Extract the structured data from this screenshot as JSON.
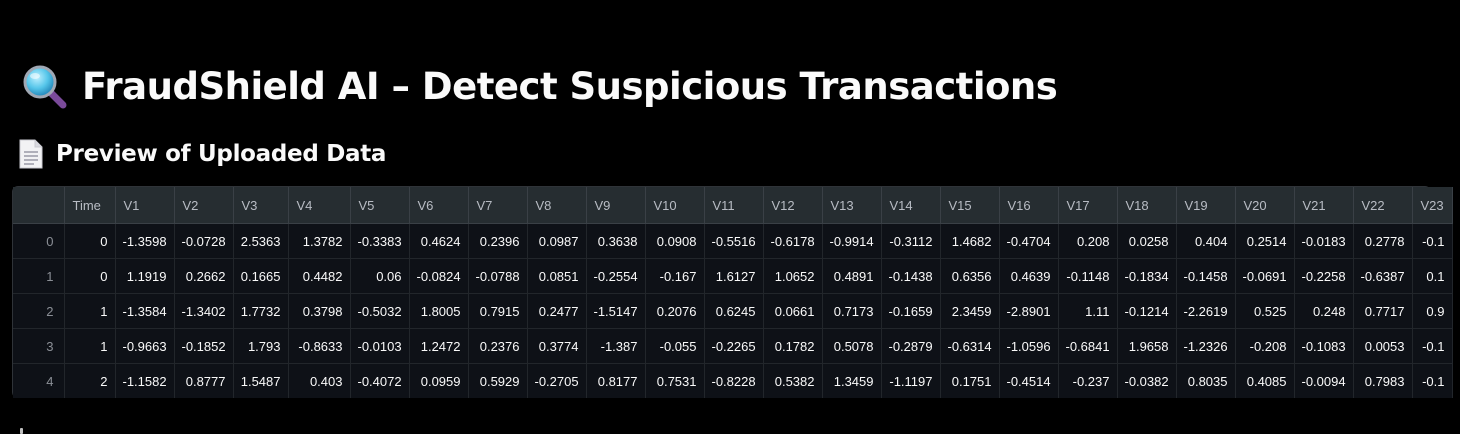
{
  "header": {
    "title": "FraudShield AI – Detect Suspicious Transactions",
    "title_icon": "magnifying-glass-icon"
  },
  "preview": {
    "subtitle": "Preview of Uploaded Data",
    "subtitle_icon": "document-icon"
  },
  "table": {
    "columns": [
      "",
      "Time",
      "V1",
      "V2",
      "V3",
      "V4",
      "V5",
      "V6",
      "V7",
      "V8",
      "V9",
      "V10",
      "V11",
      "V12",
      "V13",
      "V14",
      "V15",
      "V16",
      "V17",
      "V18",
      "V19",
      "V20",
      "V21",
      "V22",
      "V23"
    ],
    "rows": [
      [
        "0",
        "0",
        "-1.3598",
        "-0.0728",
        "2.5363",
        "1.3782",
        "-0.3383",
        "0.4624",
        "0.2396",
        "0.0987",
        "0.3638",
        "0.0908",
        "-0.5516",
        "-0.6178",
        "-0.9914",
        "-0.3112",
        "1.4682",
        "-0.4704",
        "0.208",
        "0.0258",
        "0.404",
        "0.2514",
        "-0.0183",
        "0.2778",
        "-0.1"
      ],
      [
        "1",
        "0",
        "1.1919",
        "0.2662",
        "0.1665",
        "0.4482",
        "0.06",
        "-0.0824",
        "-0.0788",
        "0.0851",
        "-0.2554",
        "-0.167",
        "1.6127",
        "1.0652",
        "0.4891",
        "-0.1438",
        "0.6356",
        "0.4639",
        "-0.1148",
        "-0.1834",
        "-0.1458",
        "-0.0691",
        "-0.2258",
        "-0.6387",
        "0.1"
      ],
      [
        "2",
        "1",
        "-1.3584",
        "-1.3402",
        "1.7732",
        "0.3798",
        "-0.5032",
        "1.8005",
        "0.7915",
        "0.2477",
        "-1.5147",
        "0.2076",
        "0.6245",
        "0.0661",
        "0.7173",
        "-0.1659",
        "2.3459",
        "-2.8901",
        "1.11",
        "-0.1214",
        "-2.2619",
        "0.525",
        "0.248",
        "0.7717",
        "0.9"
      ],
      [
        "3",
        "1",
        "-0.9663",
        "-0.1852",
        "1.793",
        "-0.8633",
        "-0.0103",
        "1.2472",
        "0.2376",
        "0.3774",
        "-1.387",
        "-0.055",
        "-0.2265",
        "0.1782",
        "0.5078",
        "-0.2879",
        "-0.6314",
        "-1.0596",
        "-0.6841",
        "1.9658",
        "-1.2326",
        "-0.208",
        "-0.1083",
        "0.0053",
        "-0.1"
      ],
      [
        "4",
        "2",
        "-1.1582",
        "0.8777",
        "1.5487",
        "0.403",
        "-0.4072",
        "0.0959",
        "0.5929",
        "-0.2705",
        "0.8177",
        "0.7531",
        "-0.8228",
        "0.5382",
        "1.3459",
        "-1.1197",
        "0.1751",
        "-0.4514",
        "-0.237",
        "-0.0382",
        "0.8035",
        "0.4085",
        "-0.0094",
        "0.7983",
        "-0.1"
      ]
    ]
  }
}
